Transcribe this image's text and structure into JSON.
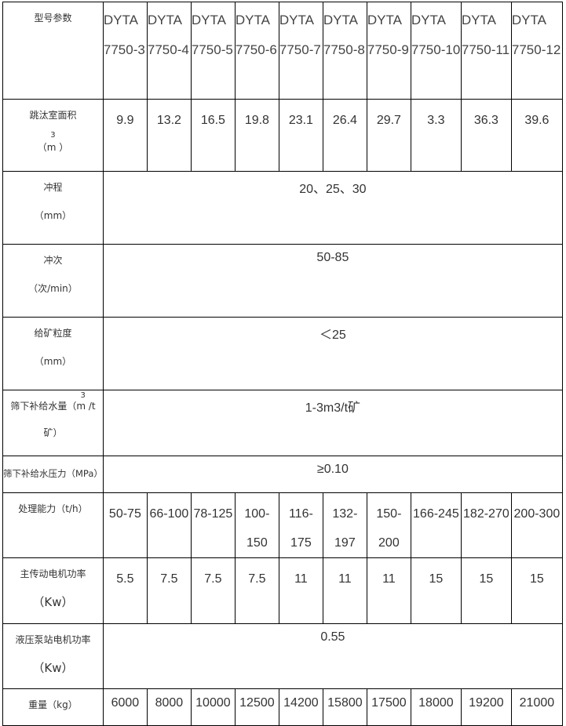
{
  "header_label": "型号参数",
  "models": [
    "DYTA 7750-3",
    "DYTA 7750-4",
    "DYTA 7750-5",
    "DYTA 7750-6",
    "DYTA 7750-7",
    "DYTA 7750-8",
    "DYTA 7750-9",
    "DYTA 7750-10",
    "DYTA 7750-11",
    "DYTA 7750-12"
  ],
  "rows": {
    "area": {
      "label": "跳汰室面积",
      "unit_sup": "3",
      "unit": "（m ）",
      "values": [
        "9.9",
        "13.2",
        "16.5",
        "19.8",
        "23.1",
        "26.4",
        "29.7",
        "3.3",
        "36.3",
        "39.6"
      ]
    },
    "stroke": {
      "label": "冲程",
      "unit": "（mm）",
      "value": "20、25、30"
    },
    "frequency": {
      "label": "冲次",
      "unit": "（次/min）",
      "value": "50-85"
    },
    "feed_size": {
      "label": "给矿粒度",
      "unit": "（mm）",
      "value": "＜25"
    },
    "water_volume": {
      "label": "筛下补给水量（m /t",
      "unit_sup": "3",
      "unit": "矿）",
      "value": "1-3m3/t矿"
    },
    "water_pressure": {
      "label": "筛下补给水压力（MPa）",
      "value": "≥0.10"
    },
    "capacity": {
      "label": "处理能力（t/h）",
      "values": [
        "50-75",
        "66-100",
        "78-125",
        "100-150",
        "116-175",
        "132-197",
        "150-200",
        "166-245",
        "182-270",
        "200-300"
      ]
    },
    "main_motor": {
      "label": "主传动电机功率",
      "unit": "（Kw）",
      "values": [
        "5.5",
        "7.5",
        "7.5",
        "7.5",
        "11",
        "11",
        "11",
        "15",
        "15",
        "15"
      ]
    },
    "pump_motor": {
      "label": "液压泵站电机功率",
      "unit": "（Kw）",
      "value": "0.55"
    },
    "weight": {
      "label": "重量（kg）",
      "values": [
        "6000",
        "8000",
        "10000",
        "12500",
        "14200",
        "15800",
        "17500",
        "18000",
        "19200",
        "21000"
      ]
    }
  }
}
